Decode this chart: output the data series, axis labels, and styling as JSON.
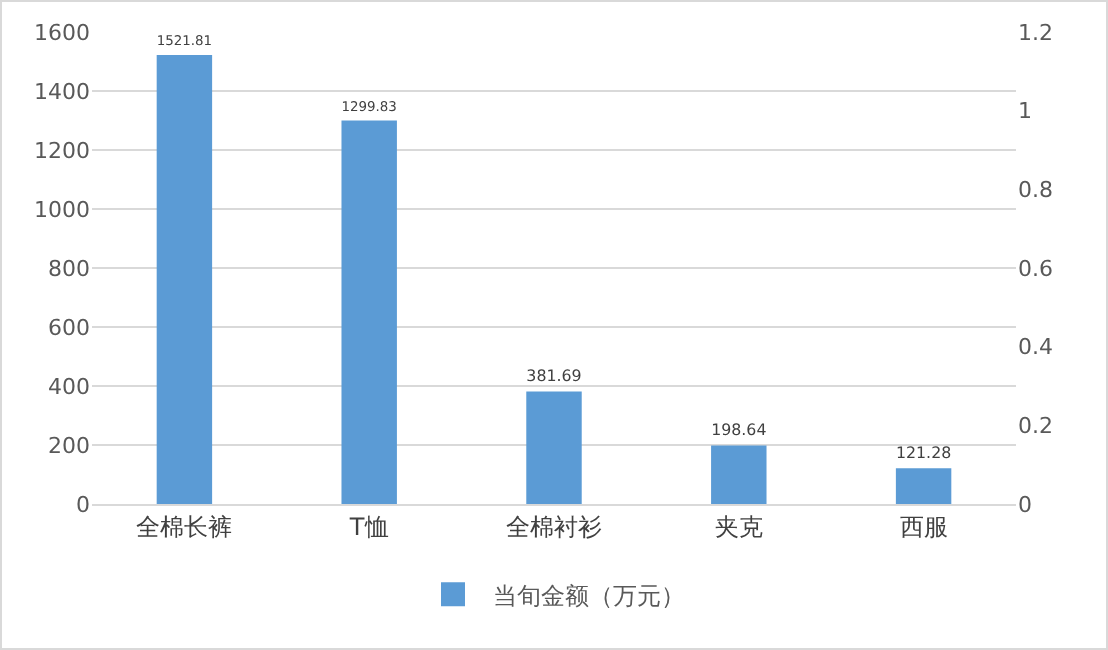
{
  "chart_data": {
    "type": "bar",
    "categories": [
      "全棉长裤",
      "T恤",
      "全棉衬衫",
      "夹克",
      "西服"
    ],
    "series": [
      {
        "name": "当旬金额（万元）",
        "color": "#5b9bd5",
        "values": [
          1521.81,
          1299.83,
          381.69,
          198.64,
          121.28
        ]
      }
    ],
    "data_labels": true,
    "ylim": [
      0,
      1600
    ],
    "yticks": [
      0,
      200,
      400,
      600,
      800,
      1000,
      1200,
      1400,
      1600
    ],
    "y2lim": [
      0,
      1.2
    ],
    "y2ticks": [
      0,
      0.2,
      0.4,
      0.6,
      0.8,
      1,
      1.2
    ],
    "grid": "y",
    "legend": "bottom"
  }
}
